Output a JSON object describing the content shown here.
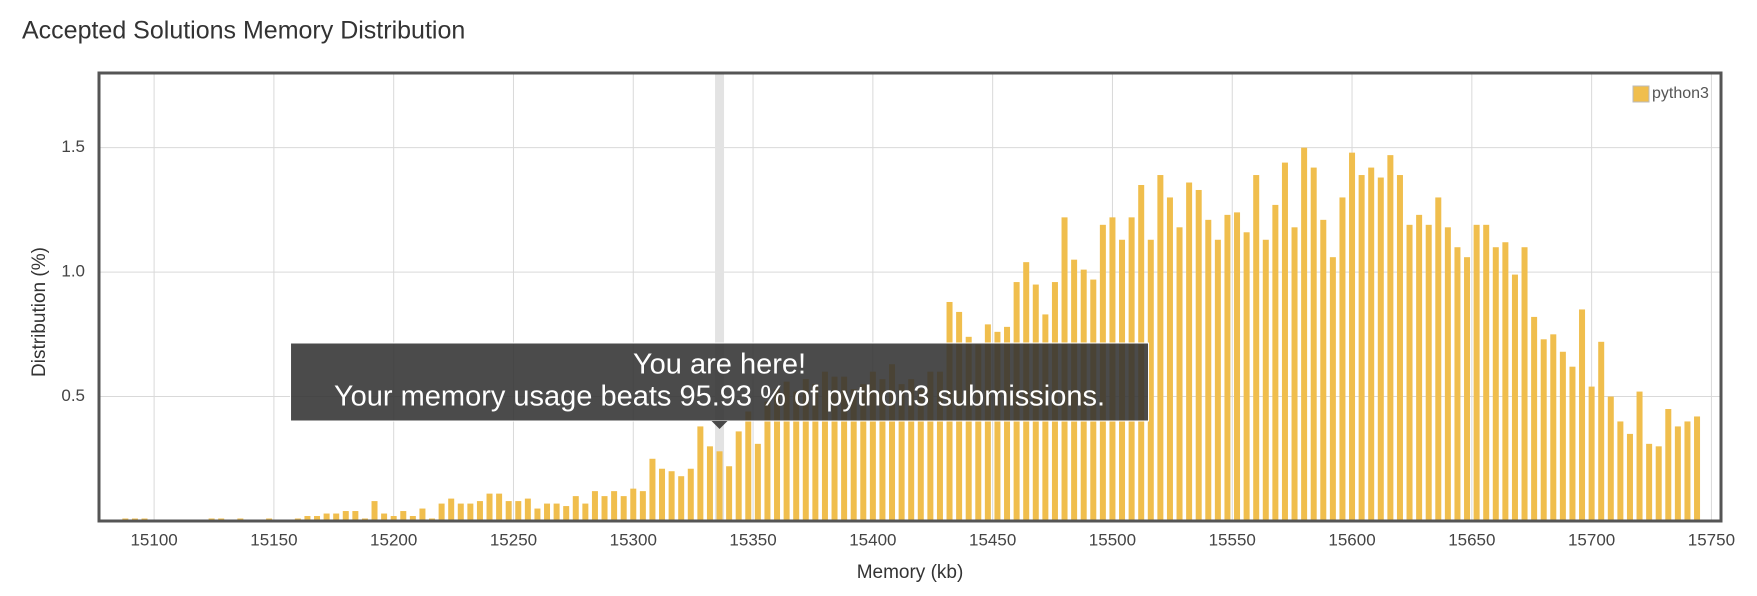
{
  "chart_data": {
    "type": "bar",
    "title": "Accepted Solutions Memory Distribution",
    "x_label": "Memory (kb)",
    "y_label": "Distribution (%)",
    "xlim": [
      15077,
      15754
    ],
    "ylim": [
      0,
      1.8
    ],
    "xticks": [
      15100,
      15150,
      15200,
      15250,
      15300,
      15350,
      15400,
      15450,
      15500,
      15550,
      15600,
      15650,
      15700,
      15750
    ],
    "yticks": [
      0.5,
      {
        "value": 1,
        "label": "1.0"
      },
      1.5
    ],
    "grid": true,
    "legend": "top-right",
    "x": [
      15088,
      15092,
      15096,
      15100,
      15104,
      15108,
      15112,
      15116,
      15120,
      15124,
      15128,
      15132,
      15136,
      15140,
      15144,
      15148,
      15152,
      15156,
      15160,
      15164,
      15168,
      15172,
      15176,
      15180,
      15184,
      15188,
      15192,
      15196,
      15200,
      15204,
      15208,
      15212,
      15216,
      15220,
      15224,
      15228,
      15232,
      15236,
      15240,
      15244,
      15248,
      15252,
      15256,
      15260,
      15264,
      15268,
      15272,
      15276,
      15280,
      15284,
      15288,
      15292,
      15296,
      15300,
      15304,
      15308,
      15312,
      15316,
      15320,
      15324,
      15328,
      15332,
      15336,
      15340,
      15344,
      15348,
      15352,
      15356,
      15360,
      15364,
      15368,
      15372,
      15376,
      15380,
      15384,
      15388,
      15392,
      15396,
      15400,
      15404,
      15408,
      15412,
      15416,
      15420,
      15424,
      15428,
      15432,
      15436,
      15440,
      15444,
      15448,
      15452,
      15456,
      15460,
      15464,
      15468,
      15472,
      15476,
      15480,
      15484,
      15488,
      15492,
      15496,
      15500,
      15504,
      15508,
      15512,
      15516,
      15520,
      15524,
      15528,
      15532,
      15536,
      15540,
      15544,
      15548,
      15552,
      15556,
      15560,
      15564,
      15568,
      15572,
      15576,
      15580,
      15584,
      15588,
      15592,
      15596,
      15600,
      15604,
      15608,
      15612,
      15616,
      15620,
      15624,
      15628,
      15632,
      15636,
      15640,
      15644,
      15648,
      15652,
      15656,
      15660,
      15664,
      15668,
      15672,
      15676,
      15680,
      15684,
      15688,
      15692,
      15696,
      15700,
      15704,
      15708,
      15712,
      15716,
      15720,
      15724,
      15728,
      15732,
      15736,
      15740,
      15744
    ],
    "series": [
      {
        "name": "python3",
        "color": "#f0be4d",
        "values": [
          0.01,
          0.01,
          0.01,
          0,
          0,
          0,
          0,
          0,
          0,
          0.01,
          0.01,
          0,
          0.01,
          0,
          0,
          0.01,
          0,
          0,
          0.01,
          0.02,
          0.02,
          0.03,
          0.03,
          0.04,
          0.04,
          0.01,
          0.08,
          0.03,
          0.02,
          0.04,
          0.02,
          0.05,
          0.01,
          0.07,
          0.09,
          0.07,
          0.07,
          0.08,
          0.11,
          0.11,
          0.08,
          0.08,
          0.09,
          0.05,
          0.07,
          0.07,
          0.06,
          0.1,
          0.07,
          0.12,
          0.1,
          0.12,
          0.1,
          0.13,
          0.12,
          0.25,
          0.21,
          0.2,
          0.18,
          0.21,
          0.38,
          0.3,
          0.28,
          0.22,
          0.36,
          0.44,
          0.31,
          0.48,
          0.53,
          0.56,
          0.52,
          0.57,
          0.55,
          0.6,
          0.58,
          0.58,
          0.53,
          0.55,
          0.6,
          0.57,
          0.63,
          0.55,
          0.57,
          0.53,
          0.6,
          0.6,
          0.88,
          0.84,
          0.74,
          0.71,
          0.79,
          0.76,
          0.78,
          0.96,
          1.04,
          0.95,
          0.83,
          0.96,
          1.22,
          1.05,
          1.01,
          0.97,
          1.19,
          1.22,
          1.13,
          1.22,
          1.35,
          1.13,
          1.39,
          1.3,
          1.18,
          1.36,
          1.33,
          1.21,
          1.13,
          1.23,
          1.24,
          1.16,
          1.39,
          1.13,
          1.27,
          1.44,
          1.18,
          1.5,
          1.42,
          1.21,
          1.06,
          1.3,
          1.48,
          1.39,
          1.42,
          1.38,
          1.47,
          1.39,
          1.19,
          1.23,
          1.19,
          1.3,
          1.18,
          1.1,
          1.06,
          1.19,
          1.19,
          1.1,
          1.12,
          0.99,
          1.1,
          0.82,
          0.73,
          0.75,
          0.68,
          0.62,
          0.85,
          0.54,
          0.72,
          0.5,
          0.4,
          0.35,
          0.52,
          0.31,
          0.3,
          0.45,
          0.38,
          0.4,
          0.42
        ]
      }
    ],
    "highlight_x": 15336,
    "tooltip": {
      "title": "You are here!",
      "text": "Your memory usage beats 95.93 % of python3 submissions."
    }
  }
}
